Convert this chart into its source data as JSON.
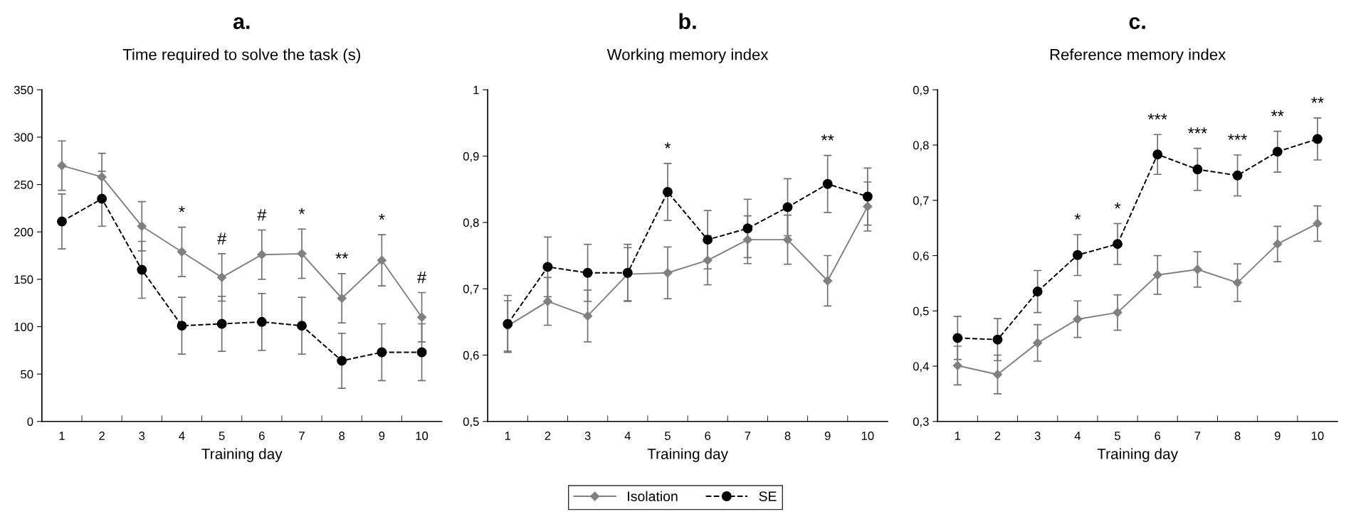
{
  "chart_data": [
    {
      "type": "line",
      "title": "a.",
      "subtitle": "Time required to solve the task (s)",
      "xlabel": "Training day",
      "categories": [
        "1",
        "2",
        "3",
        "4",
        "5",
        "6",
        "7",
        "8",
        "9",
        "10"
      ],
      "series": [
        {
          "name": "Isolation",
          "color": "#808080",
          "marker": "diamond",
          "line_style": "solid",
          "values": [
            270,
            258,
            206,
            179,
            152,
            176,
            177,
            130,
            170,
            110
          ],
          "errors": [
            26,
            25,
            26,
            26,
            25,
            26,
            26,
            26,
            27,
            26
          ]
        },
        {
          "name": "SE",
          "color": "#000000",
          "marker": "circle",
          "line_style": "dashed",
          "values": [
            211,
            235,
            160,
            101,
            103,
            105,
            101,
            64,
            73,
            73
          ],
          "errors": [
            29,
            29,
            30,
            30,
            29,
            30,
            30,
            29,
            30,
            30
          ]
        }
      ],
      "ylim": [
        0,
        350
      ],
      "yticks": [
        0,
        50,
        100,
        150,
        200,
        250,
        300,
        350
      ],
      "grid": false,
      "legend": "bottom",
      "annotations": [
        {
          "text": "*",
          "x": "4",
          "y": 179
        },
        {
          "text": "#",
          "x": "5",
          "y": 152
        },
        {
          "text": "#",
          "x": "6",
          "y": 176
        },
        {
          "text": "*",
          "x": "7",
          "y": 177
        },
        {
          "text": "**",
          "x": "8",
          "y": 130
        },
        {
          "text": "*",
          "x": "9",
          "y": 170
        },
        {
          "text": "#",
          "x": "10",
          "y": 110
        }
      ]
    },
    {
      "type": "line",
      "title": "b.",
      "subtitle": "Working memory index",
      "xlabel": "Training day",
      "categories": [
        "1",
        "2",
        "3",
        "4",
        "5",
        "6",
        "7",
        "8",
        "9",
        "10"
      ],
      "series": [
        {
          "color": "#808080",
          "marker": "diamond",
          "line_style": "solid",
          "values": [
            0.644,
            0.681,
            0.659,
            0.722,
            0.724,
            0.743,
            0.774,
            0.774,
            0.712,
            0.824
          ],
          "errors": [
            0.038,
            0.036,
            0.039,
            0.04,
            0.039,
            0.037,
            0.036,
            0.037,
            0.038,
            0.037
          ]
        },
        {
          "color": "#000000",
          "marker": "circle",
          "line_style": "dashed",
          "values": [
            0.647,
            0.733,
            0.724,
            0.724,
            0.846,
            0.774,
            0.791,
            0.823,
            0.858,
            0.839
          ],
          "errors": [
            0.043,
            0.045,
            0.043,
            0.043,
            0.043,
            0.044,
            0.044,
            0.043,
            0.043,
            0.043
          ]
        }
      ],
      "ylim": [
        0.5,
        1
      ],
      "yticks": [
        {
          "value": 0.5,
          "label": "0,5"
        },
        {
          "value": 0.6,
          "label": "0,6"
        },
        {
          "value": 0.7,
          "label": "0,7"
        },
        {
          "value": 0.8,
          "label": "0,8"
        },
        {
          "value": 0.9,
          "label": "0,9"
        },
        1
      ],
      "grid": false,
      "annotations": [
        {
          "text": "*",
          "x": "5",
          "y": 0.846
        },
        {
          "text": "**",
          "x": "9",
          "y": 0.858
        }
      ]
    },
    {
      "type": "line",
      "title": "c.",
      "subtitle": "Reference memory index",
      "xlabel": "Training day",
      "categories": [
        "1",
        "2",
        "3",
        "4",
        "5",
        "6",
        "7",
        "8",
        "9",
        "10"
      ],
      "series": [
        {
          "color": "#808080",
          "marker": "diamond",
          "line_style": "solid",
          "values": [
            0.401,
            0.385,
            0.442,
            0.485,
            0.497,
            0.565,
            0.575,
            0.551,
            0.621,
            0.658
          ],
          "errors": [
            0.035,
            0.035,
            0.033,
            0.033,
            0.032,
            0.035,
            0.032,
            0.034,
            0.032,
            0.032
          ]
        },
        {
          "color": "#000000",
          "marker": "circle",
          "line_style": "dashed",
          "values": [
            0.451,
            0.448,
            0.535,
            0.601,
            0.621,
            0.783,
            0.756,
            0.745,
            0.788,
            0.811
          ],
          "errors": [
            0.039,
            0.038,
            0.038,
            0.037,
            0.037,
            0.036,
            0.038,
            0.037,
            0.037,
            0.038
          ]
        }
      ],
      "ylim": [
        0.3,
        0.9
      ],
      "yticks": [
        {
          "value": 0.3,
          "label": "0,3"
        },
        {
          "value": 0.4,
          "label": "0,4"
        },
        {
          "value": 0.5,
          "label": "0,5"
        },
        {
          "value": 0.6,
          "label": "0,6"
        },
        {
          "value": 0.7,
          "label": "0,7"
        },
        {
          "value": 0.8,
          "label": "0,8"
        },
        {
          "value": 0.9,
          "label": "0,9"
        }
      ],
      "grid": false,
      "annotations": [
        {
          "text": "*",
          "x": "4",
          "y": 0.601
        },
        {
          "text": "*",
          "x": "5",
          "y": 0.621
        },
        {
          "text": "***",
          "x": "6",
          "y": 0.783
        },
        {
          "text": "***",
          "x": "7",
          "y": 0.756
        },
        {
          "text": "***",
          "x": "8",
          "y": 0.745
        },
        {
          "text": "**",
          "x": "9",
          "y": 0.788
        },
        {
          "text": "**",
          "x": "10",
          "y": 0.811
        }
      ]
    }
  ]
}
